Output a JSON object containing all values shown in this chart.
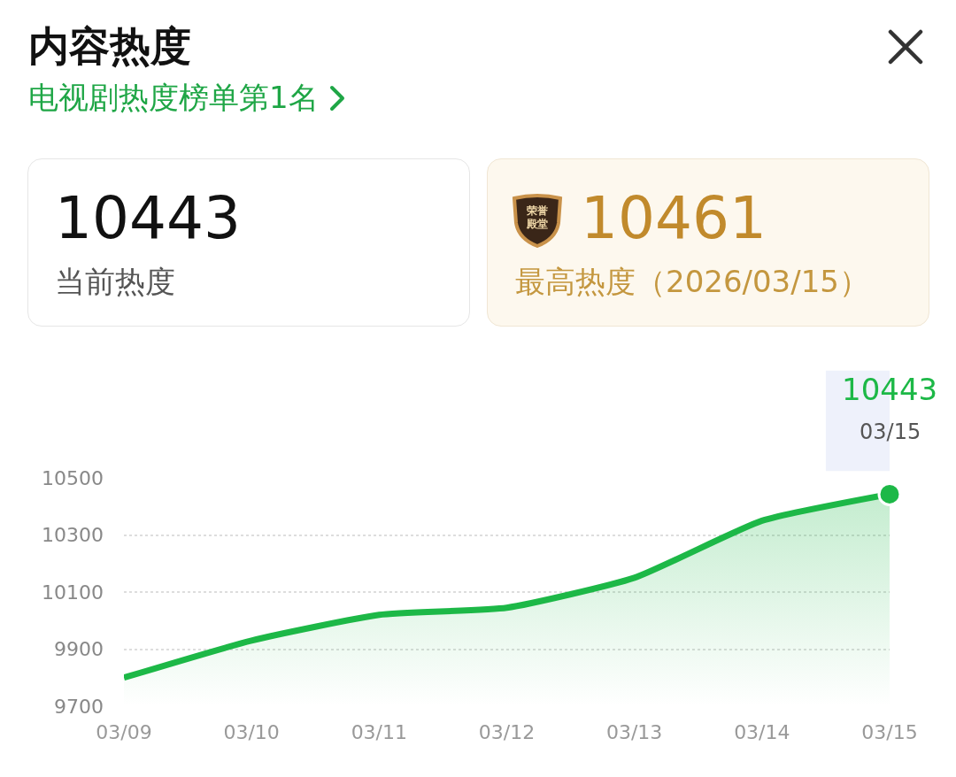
{
  "chart_data": {
    "type": "area",
    "title": "内容热度",
    "subtitle": "电视剧热度榜单第1名",
    "categories": [
      "03/09",
      "03/10",
      "03/11",
      "03/12",
      "03/13",
      "03/14",
      "03/15"
    ],
    "series": [
      {
        "color": "#1db847",
        "values": [
          9800,
          9930,
          10020,
          10045,
          10150,
          10350,
          10443
        ]
      }
    ],
    "ylim": [
      9700,
      10500
    ],
    "yticks": [
      9700,
      9900,
      10100,
      10300,
      10500
    ],
    "grid": "y",
    "marker": "none",
    "line_style": "solid",
    "annotations": [
      "10443",
      "当前热度",
      "10461",
      "荣誉殿堂",
      "最高热度（2026/03/15）",
      {
        "text": "10443",
        "x": "03/15",
        "y": 10443
      },
      {
        "text": "03/15",
        "x": "03/15",
        "y": 10443
      }
    ]
  }
}
